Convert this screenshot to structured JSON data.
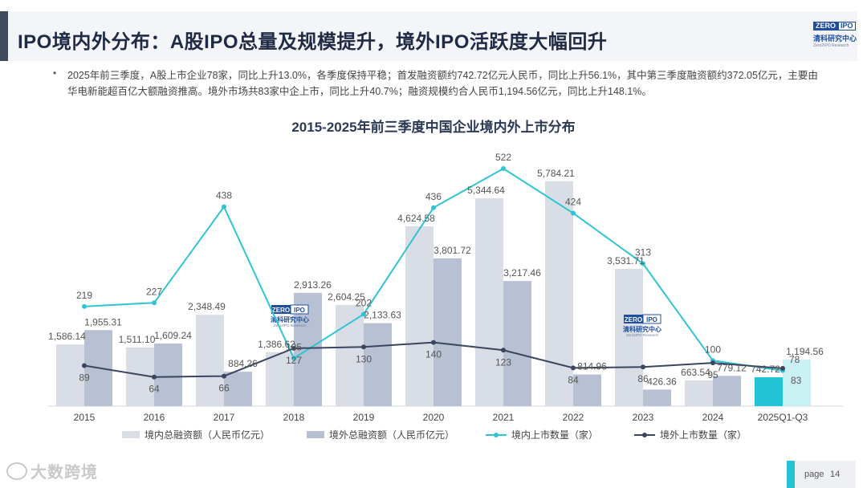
{
  "header": {
    "title": "IPO境内外分布：A股IPO总量及规模提升，境外IPO活跃度大幅回升",
    "logo_top_left": "ZERO",
    "logo_top_right": "IPO",
    "logo_cn": "清科研究中心",
    "logo_en": "Zero2IPO Research"
  },
  "summary": {
    "bullet": "•",
    "text": "2025年前三季度，A股上市企业78家，同比上升13.0%，各季度保持平稳；首发融资额约742.72亿元人民币，同比上升56.1%，其中第三季度融资额约372.05亿元，主要由华电新能超百亿大额融资推高。境外市场共83家中企上市，同比上升40.7%；融资规模约合人民币1,194.56亿元，同比上升148.1%。"
  },
  "chart_data": {
    "type": "bar",
    "title": "2015-2025年前三季度中国企业境内外上市分布",
    "categories": [
      "2015",
      "2016",
      "2017",
      "2018",
      "2019",
      "2020",
      "2021",
      "2022",
      "2023",
      "2024",
      "2025Q1-Q3"
    ],
    "series": [
      {
        "name": "境内总融资额（人民币亿元）",
        "kind": "bar",
        "axis": "left",
        "values": [
          1586.14,
          1511.1,
          2348.49,
          1386.62,
          2604.25,
          4624.58,
          5344.64,
          5784.21,
          3531.71,
          663.54,
          742.72
        ],
        "labels": [
          "1,586.14",
          "1,511.10",
          "2,348.49",
          "1,386.62",
          "2,604.25",
          "4,624.58",
          "5,344.64",
          "5,784.21",
          "3,531.71",
          "663.54",
          "742.72"
        ]
      },
      {
        "name": "境外总融资额（人民币亿元）",
        "kind": "bar",
        "axis": "left",
        "values": [
          1955.31,
          1609.24,
          884.26,
          2913.26,
          2133.63,
          3801.72,
          3217.46,
          814.96,
          426.36,
          779.12,
          1194.56
        ],
        "labels": [
          "1,955.31",
          "1,609.24",
          "884.26",
          "2,913.26",
          "2,133.63",
          "3,801.72",
          "3,217.46",
          "814.96",
          "426.36",
          "779.12",
          "1,194.56"
        ]
      },
      {
        "name": "境内上市数量（家）",
        "kind": "line",
        "axis": "right",
        "values": [
          219,
          227,
          438,
          105,
          202,
          436,
          522,
          424,
          313,
          100,
          78
        ],
        "labels": [
          "219",
          "227",
          "438",
          "105",
          "202",
          "436",
          "522",
          "424",
          "313",
          "100",
          "78"
        ]
      },
      {
        "name": "境外上市数量（家）",
        "kind": "line",
        "axis": "right",
        "values": [
          89,
          64,
          66,
          127,
          130,
          140,
          123,
          84,
          86,
          95,
          83
        ],
        "labels": [
          "89",
          "64",
          "66",
          "127",
          "130",
          "140",
          "123",
          "84",
          "86",
          "95",
          "83"
        ]
      }
    ],
    "ylim_left": [
      0,
      6000
    ],
    "ylim_right": [
      0,
      560
    ],
    "legend_position": "bottom",
    "colors": {
      "domestic_bar": "#d9dde6",
      "overseas_bar": "#b7c1d3",
      "domestic_bar_latest": "#22c4d4",
      "overseas_bar_latest": "#c9f1f4",
      "domestic_line": "#2fc4d2",
      "overseas_line": "#3a4660"
    }
  },
  "chart_watermark": {
    "top_left": "ZERO",
    "top_right": "IPO",
    "cn": "清科研究中心",
    "en": "Zero2IPO Research"
  },
  "footer": {
    "watermark": "大数跨境",
    "page_label": "page",
    "page_number": "14"
  }
}
